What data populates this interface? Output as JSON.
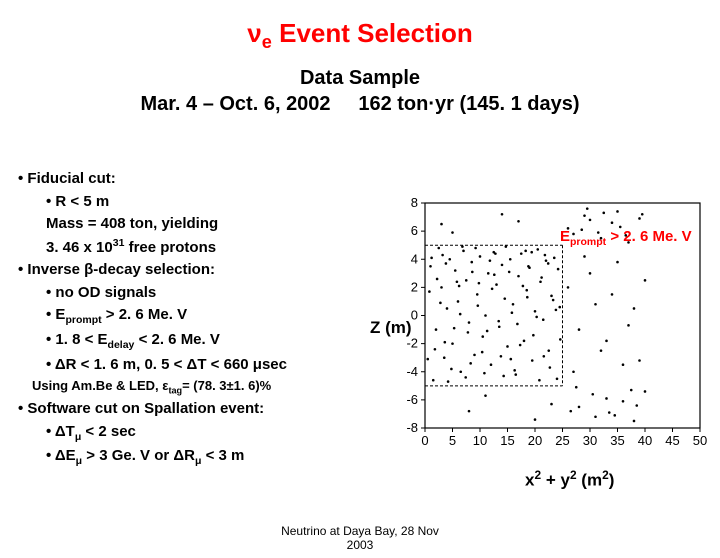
{
  "title_prefix": "ν",
  "title_sub": "e",
  "title_rest": " Event Selection",
  "title_color": "#ff0000",
  "subtitle_line1": "Data Sample",
  "subtitle_line2": "Mar. 4 – Oct. 6, 2002     162 ton·yr (145. 1 days)",
  "bullets": {
    "b1": "Fiducial cut:",
    "b1a": "R < 5 m",
    "b1b": "Mass = 408 ton, yielding",
    "b1c_pre": "3. 46 x 10",
    "b1c_sup": "31",
    "b1c_post": " free protons",
    "b2": "Inverse β-decay selection:",
    "b2a": "no OD signals",
    "b2b_pre": "E",
    "b2b_sub": "prompt",
    "b2b_post": " > 2. 6 Me. V",
    "b2c_pre": "1. 8 < E",
    "b2c_sub": "delay",
    "b2c_post": " < 2. 6 Me. V",
    "b2d": "ΔR < 1. 6 m, 0. 5 < ΔT < 660 μsec",
    "using_pre": "Using Am.Be & LED, ε",
    "using_sub": "tag",
    "using_post": "= (78. 3±1. 6)%",
    "b3": "Software cut on Spallation event:",
    "b3a_pre": "ΔT",
    "b3a_sub": "μ",
    "b3a_post": " < 2 sec",
    "b3b_pre": "ΔE",
    "b3b_sub": "μ",
    "b3b_mid": " > 3 Ge. V   or  ΔR",
    "b3b_sub2": "μ",
    "b3b_post": " < 3 m"
  },
  "chart": {
    "type": "scatter",
    "xlabel_pre": "x",
    "xlabel_sup1": "2",
    "xlabel_mid": " + y",
    "xlabel_sup2": "2",
    "xlabel_post": " (m",
    "xlabel_sup3": "2",
    "xlabel_end": ")",
    "ylabel": "Z (m)",
    "note_pre": "E",
    "note_sub": "prompt",
    "note_post": " > 2. 6 Me. V",
    "xlim": [
      0,
      50
    ],
    "ylim": [
      -8,
      8
    ],
    "xticks": [
      0,
      5,
      10,
      15,
      20,
      25,
      30,
      35,
      40,
      45,
      50
    ],
    "yticks": [
      -8,
      -6,
      -4,
      -2,
      0,
      2,
      4,
      6,
      8
    ],
    "tick_fontsize": 13,
    "axis_color": "#000000",
    "background_color": "#ffffff",
    "fiducial_r2": 25,
    "fiducial_zmin": -5,
    "fiducial_zmax": 5,
    "marker_color": "#000000",
    "boundary_color": "#000000",
    "points": [
      [
        1,
        3.5
      ],
      [
        2,
        -1
      ],
      [
        2.5,
        4.8
      ],
      [
        3,
        2
      ],
      [
        3.5,
        -3
      ],
      [
        4,
        0.5
      ],
      [
        4.5,
        4
      ],
      [
        5,
        -2
      ],
      [
        5.5,
        3.2
      ],
      [
        6,
        1
      ],
      [
        6.5,
        -4
      ],
      [
        7,
        4.6
      ],
      [
        7.5,
        2.5
      ],
      [
        8,
        -0.5
      ],
      [
        8.5,
        3.8
      ],
      [
        9,
        -2.8
      ],
      [
        9.5,
        1.5
      ],
      [
        10,
        4.2
      ],
      [
        10.5,
        -1.5
      ],
      [
        11,
        0
      ],
      [
        11.5,
        3
      ],
      [
        12,
        -3.5
      ],
      [
        12.5,
        4.5
      ],
      [
        13,
        2.2
      ],
      [
        13.5,
        -0.8
      ],
      [
        14,
        3.6
      ],
      [
        14.5,
        1.2
      ],
      [
        15,
        -2.2
      ],
      [
        15.5,
        4
      ],
      [
        16,
        0.8
      ],
      [
        16.5,
        -4.2
      ],
      [
        17,
        2.8
      ],
      [
        17.5,
        4.4
      ],
      [
        18,
        -1.8
      ],
      [
        18.5,
        1.8
      ],
      [
        19,
        3.4
      ],
      [
        19.5,
        -3.2
      ],
      [
        20,
        0.3
      ],
      [
        20.5,
        4.7
      ],
      [
        21,
        2.4
      ],
      [
        21.5,
        -0.3
      ],
      [
        22,
        3.9
      ],
      [
        22.5,
        -2.5
      ],
      [
        23,
        1.4
      ],
      [
        23.5,
        4.1
      ],
      [
        24,
        -4.5
      ],
      [
        24.5,
        0.6
      ],
      [
        1.5,
        -4.6
      ],
      [
        2.8,
        0.9
      ],
      [
        3.2,
        4.3
      ],
      [
        4.8,
        -3.8
      ],
      [
        6.2,
        2.1
      ],
      [
        7.8,
        -1.2
      ],
      [
        9.2,
        4.8
      ],
      [
        10.8,
        -4.1
      ],
      [
        12.2,
        1.9
      ],
      [
        13.8,
        -2.9
      ],
      [
        15.3,
        3.1
      ],
      [
        16.8,
        -0.6
      ],
      [
        18.3,
        4.6
      ],
      [
        19.7,
        -1.4
      ],
      [
        21.2,
        2.7
      ],
      [
        22.7,
        -3.7
      ],
      [
        24.2,
        3.3
      ],
      [
        0.8,
        1.7
      ],
      [
        1.8,
        -2.4
      ],
      [
        3.8,
        3.7
      ],
      [
        5.3,
        -0.9
      ],
      [
        6.8,
        4.9
      ],
      [
        8.3,
        -3.4
      ],
      [
        9.8,
        2.3
      ],
      [
        11.3,
        -1.1
      ],
      [
        12.8,
        4.4
      ],
      [
        14.3,
        -4.3
      ],
      [
        15.8,
        0.2
      ],
      [
        17.3,
        -2.1
      ],
      [
        18.8,
        3.5
      ],
      [
        20.3,
        -0.1
      ],
      [
        21.8,
        4.3
      ],
      [
        23.3,
        1.1
      ],
      [
        2.2,
        2.6
      ],
      [
        4.2,
        -4.7
      ],
      [
        6.4,
        0.1
      ],
      [
        8.6,
        3.1
      ],
      [
        10.4,
        -2.6
      ],
      [
        12.6,
        2.9
      ],
      [
        14.7,
        4.9
      ],
      [
        16.3,
        -3.9
      ],
      [
        18.6,
        1.3
      ],
      [
        20.8,
        -4.6
      ],
      [
        22.4,
        3.7
      ],
      [
        24.6,
        -1.7
      ],
      [
        1.2,
        4.1
      ],
      [
        3.6,
        -1.9
      ],
      [
        5.8,
        2.4
      ],
      [
        7.4,
        -4.4
      ],
      [
        9.6,
        0.7
      ],
      [
        11.8,
        3.9
      ],
      [
        13.4,
        -0.4
      ],
      [
        15.6,
        -3.1
      ],
      [
        17.8,
        2.1
      ],
      [
        19.4,
        4.5
      ],
      [
        21.6,
        -2.9
      ],
      [
        23.8,
        0.4
      ],
      [
        0.5,
        -3.1
      ],
      [
        26,
        6.2
      ],
      [
        27,
        5.8
      ],
      [
        28,
        -6.5
      ],
      [
        29,
        7.1
      ],
      [
        30,
        6.8
      ],
      [
        31,
        -7.2
      ],
      [
        32,
        5.5
      ],
      [
        33,
        -5.9
      ],
      [
        34,
        6.6
      ],
      [
        35,
        7.4
      ],
      [
        36,
        -6.1
      ],
      [
        37,
        5.2
      ],
      [
        38,
        -7.5
      ],
      [
        39,
        6.9
      ],
      [
        40,
        -5.4
      ],
      [
        26.5,
        -6.8
      ],
      [
        28.5,
        6.1
      ],
      [
        30.5,
        -5.6
      ],
      [
        32.5,
        7.3
      ],
      [
        34.5,
        -7.1
      ],
      [
        36.5,
        5.7
      ],
      [
        38.5,
        -6.4
      ],
      [
        27.5,
        -5.1
      ],
      [
        29.5,
        7.6
      ],
      [
        31.5,
        5.9
      ],
      [
        33.5,
        -6.9
      ],
      [
        35.5,
        6.3
      ],
      [
        37.5,
        -5.3
      ],
      [
        39.5,
        7.2
      ],
      [
        3,
        6.5
      ],
      [
        8,
        -6.8
      ],
      [
        14,
        7.2
      ],
      [
        20,
        -7.4
      ],
      [
        5,
        5.9
      ],
      [
        11,
        -5.7
      ],
      [
        17,
        6.7
      ],
      [
        23,
        -6.3
      ],
      [
        26,
        2
      ],
      [
        28,
        -1
      ],
      [
        30,
        3
      ],
      [
        32,
        -2.5
      ],
      [
        34,
        1.5
      ],
      [
        36,
        -3.5
      ],
      [
        38,
        0.5
      ],
      [
        40,
        2.5
      ],
      [
        27,
        -4
      ],
      [
        29,
        4.2
      ],
      [
        31,
        0.8
      ],
      [
        33,
        -1.8
      ],
      [
        35,
        3.8
      ],
      [
        37,
        -0.7
      ],
      [
        39,
        -3.2
      ]
    ]
  },
  "footer_line1": "Neutrino at Daya Bay, 28 Nov",
  "footer_line2": "2003"
}
